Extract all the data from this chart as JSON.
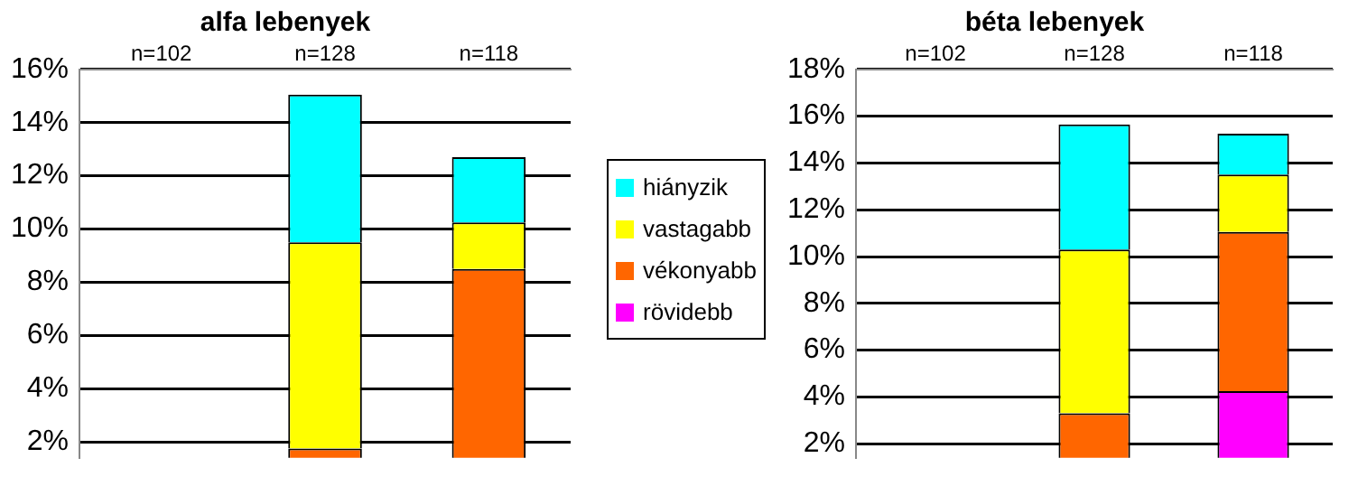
{
  "chart_data": [
    {
      "type": "bar",
      "title": "alfa lebenyek",
      "categories": [
        "n=102",
        "n=128",
        "n=118"
      ],
      "stacked": true,
      "legend": "right",
      "grid": "y",
      "ylim": [
        1.4,
        16
      ],
      "yticks": [
        {
          "value": 2,
          "label": "2%"
        },
        {
          "value": 4,
          "label": "4%"
        },
        {
          "value": 6,
          "label": "6%"
        },
        {
          "value": 8,
          "label": "8%"
        },
        {
          "value": 10,
          "label": "10%"
        },
        {
          "value": 12,
          "label": "12%"
        },
        {
          "value": 14,
          "label": "14%"
        },
        {
          "value": 16,
          "label": "16%"
        }
      ],
      "series": [
        {
          "name": "rövidebb",
          "color": "#ff00ff",
          "values": [
            null,
            null,
            null
          ]
        },
        {
          "name": "vékonyabb",
          "color": "#ff6600",
          "values": [
            null,
            1.75,
            8.5
          ]
        },
        {
          "name": "vastagabb",
          "color": "#ffff00",
          "values": [
            null,
            7.75,
            1.75
          ]
        },
        {
          "name": "hiányzik",
          "color": "#00ffff",
          "values": [
            null,
            5.55,
            2.45
          ]
        }
      ]
    },
    {
      "type": "bar",
      "title": "béta lebenyek",
      "categories": [
        "n=102",
        "n=128",
        "n=118"
      ],
      "stacked": true,
      "grid": "y",
      "ylim": [
        1.4,
        18
      ],
      "yticks": [
        {
          "value": 2,
          "label": "2%"
        },
        {
          "value": 4,
          "label": "4%"
        },
        {
          "value": 6,
          "label": "6%"
        },
        {
          "value": 8,
          "label": "8%"
        },
        {
          "value": 10,
          "label": "10%"
        },
        {
          "value": 12,
          "label": "12%"
        },
        {
          "value": 14,
          "label": "14%"
        },
        {
          "value": 16,
          "label": "16%"
        },
        {
          "value": 18,
          "label": "18%"
        }
      ],
      "series": [
        {
          "color": "#ff00ff",
          "values": [
            null,
            null,
            4.25
          ]
        },
        {
          "color": "#ff6600",
          "values": [
            null,
            3.3,
            6.8
          ]
        },
        {
          "color": "#ffff00",
          "values": [
            null,
            7.0,
            2.45
          ]
        },
        {
          "color": "#00ffff",
          "values": [
            null,
            5.35,
            1.75
          ]
        }
      ]
    }
  ]
}
